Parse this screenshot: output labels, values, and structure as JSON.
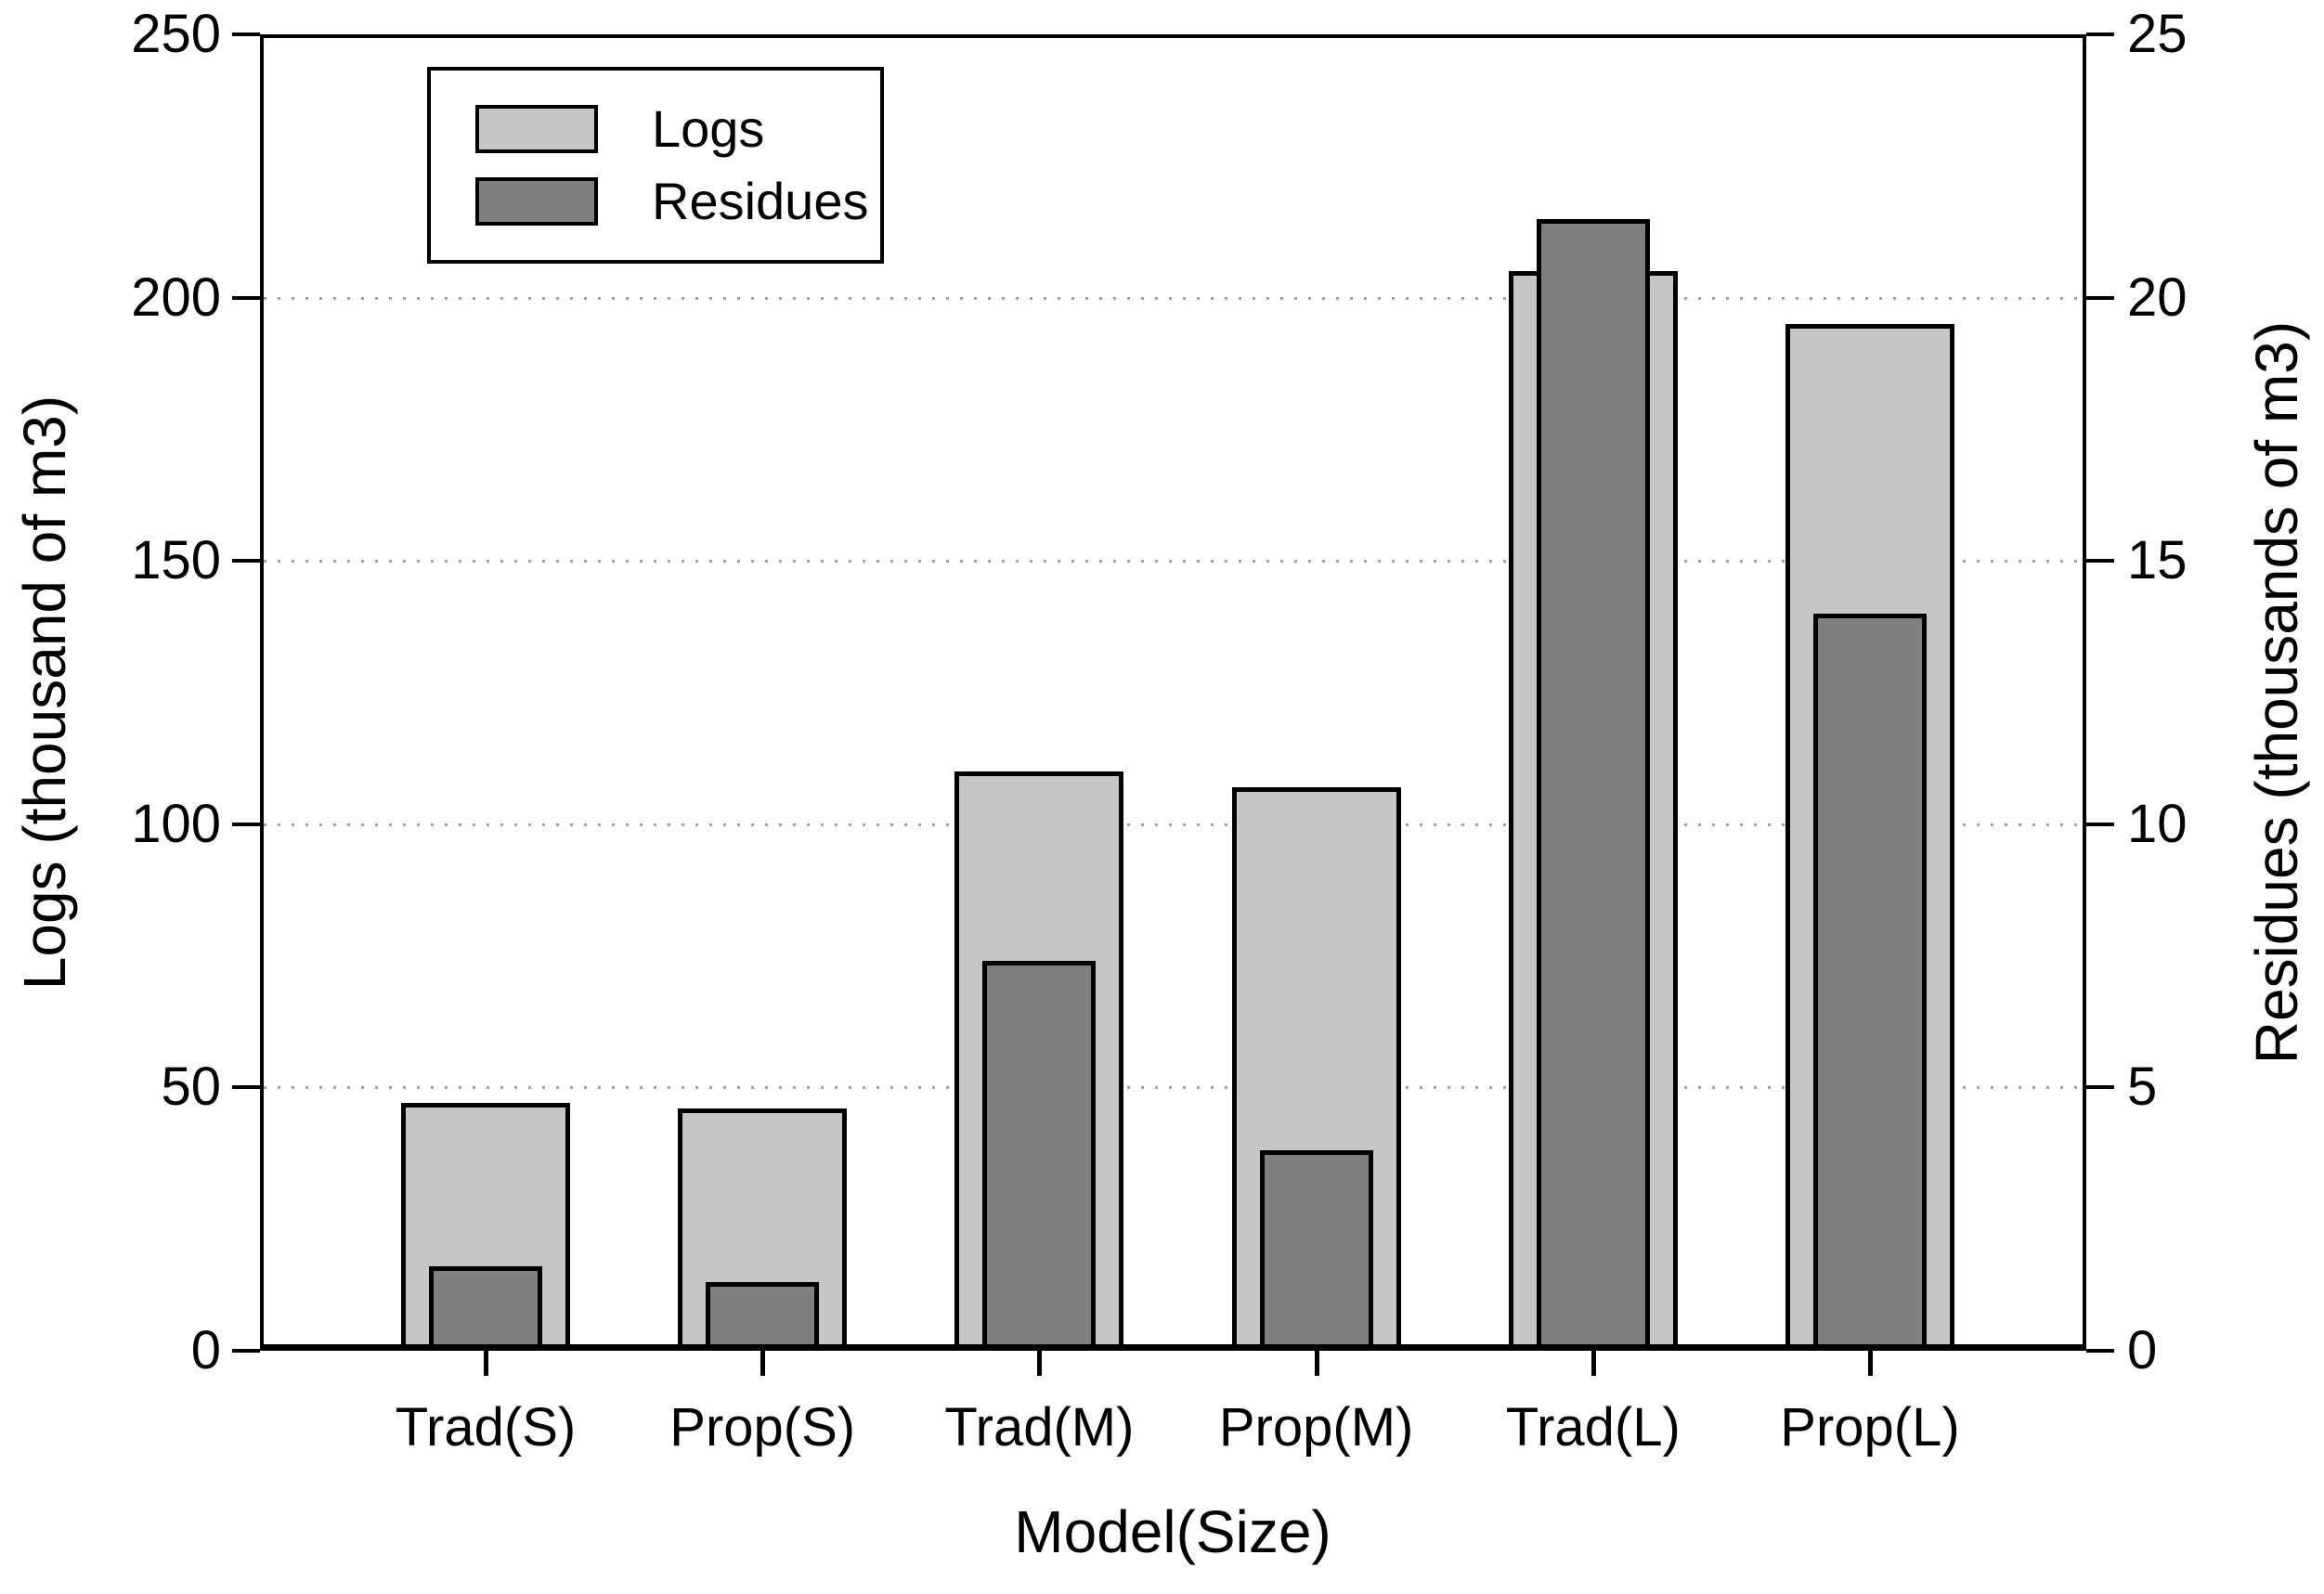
{
  "figure": {
    "background": "#ffffff",
    "text_color": "#000000",
    "gridline_color": "#a0a0a0"
  },
  "chart_data": {
    "type": "bar",
    "title": "",
    "xlabel": "Model(Size)",
    "ylabel_left": "Logs (thousand of m3)",
    "ylabel_right": "Residues (thousands of m3)",
    "categories": [
      "Trad(S)",
      "Prop(S)",
      "Trad(M)",
      "Prop(M)",
      "Trad(L)",
      "Prop(L)"
    ],
    "series": [
      {
        "name": "Logs",
        "axis": "left",
        "color": "#c6c6c6",
        "values": [
          47,
          46,
          110,
          107,
          205,
          195
        ]
      },
      {
        "name": "Residues",
        "axis": "right",
        "color": "#7f7f7f",
        "values": [
          1.6,
          1.3,
          7.4,
          3.8,
          21.5,
          14
        ]
      }
    ],
    "left_axis": {
      "min": 0,
      "max": 250,
      "ticks": [
        0,
        50,
        100,
        150,
        200,
        250
      ]
    },
    "right_axis": {
      "min": 0,
      "max": 25,
      "ticks": [
        0,
        5,
        10,
        15,
        20,
        25
      ]
    },
    "gridlines": {
      "values_left_scale": [
        50,
        100,
        150,
        200
      ],
      "style": "dotted"
    },
    "legend": {
      "position": "top-left",
      "items": [
        {
          "label": "Logs",
          "color": "#c6c6c6"
        },
        {
          "label": "Residues",
          "color": "#7f7f7f"
        }
      ]
    }
  }
}
